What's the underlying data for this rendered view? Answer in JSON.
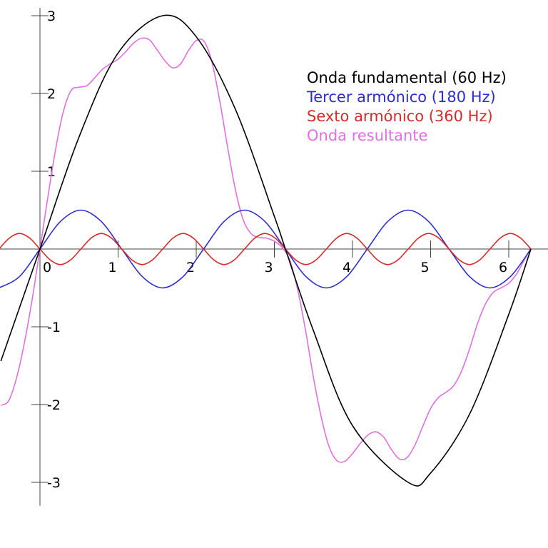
{
  "chart_data": {
    "type": "line",
    "title": "",
    "xlabel": "",
    "ylabel": "",
    "xlim": [
      -0.53,
      6.35
    ],
    "ylim": [
      -3.3,
      3.1
    ],
    "x_ticks": [
      0,
      1,
      2,
      3,
      4,
      5,
      6
    ],
    "x_tick_labels": [
      "0",
      "1",
      "2",
      "3",
      "4",
      "5",
      "6"
    ],
    "y_ticks": [
      -3,
      -2,
      -1,
      1,
      2,
      3
    ],
    "y_tick_labels": [
      "-3",
      "-2",
      "-1",
      "1",
      "2",
      "3"
    ],
    "grid": false,
    "legend_position": "top-right",
    "series": [
      {
        "name": "Onda fundamental (60 Hz)",
        "color": "#000000",
        "x": [
          -0.5,
          0,
          0.5,
          1,
          1.5708,
          2,
          2.5,
          3,
          3.1416,
          3.5,
          4,
          4.7124,
          5,
          5.5,
          6,
          6.2832
        ],
        "y": [
          -1.44,
          0,
          1.44,
          2.52,
          3,
          2.73,
          1.8,
          0.42,
          0,
          -1.05,
          -2.27,
          -3,
          -2.88,
          -2.12,
          -0.84,
          0
        ]
      },
      {
        "name": "Tercer armónico (180 Hz)",
        "color": "#2d2dcc",
        "x": [
          -0.5236,
          -0.2618,
          0,
          0.2618,
          0.5236,
          0.7854,
          1.0472,
          1.309,
          1.5708,
          1.8326,
          2.0944,
          2.3562,
          2.618,
          2.8798,
          3.1416,
          3.4034,
          3.6652,
          3.927,
          4.1888,
          4.4506,
          4.7124,
          4.9742,
          5.236,
          5.4978,
          5.7596,
          6.0214,
          6.2832
        ],
        "y": [
          -0.5,
          -0.354,
          0,
          0.354,
          0.5,
          0.354,
          0,
          -0.354,
          -0.5,
          -0.354,
          0,
          0.354,
          0.5,
          0.354,
          0,
          -0.354,
          -0.5,
          -0.354,
          0,
          0.354,
          0.5,
          0.354,
          0,
          -0.354,
          -0.5,
          -0.354,
          0
        ]
      },
      {
        "name": "Sexto armónico (360 Hz)",
        "color": "#d42a2a",
        "x": [
          -0.5236,
          -0.3927,
          -0.2618,
          -0.1309,
          0,
          0.1309,
          0.2618,
          0.3927,
          0.5236,
          0.6545,
          0.7854,
          0.9163,
          1.0472,
          1.1781,
          1.309,
          1.4399,
          1.5708,
          1.7017,
          1.8326,
          1.9635,
          2.0944,
          2.2253,
          2.3562,
          2.4871,
          2.618,
          2.7489,
          2.8798,
          3.0107,
          3.1416,
          3.2725,
          3.4034,
          3.5343,
          3.6652,
          3.7961,
          3.927,
          4.0579,
          4.1888,
          4.3197,
          4.4506,
          4.5815,
          4.7124,
          4.8433,
          4.9742,
          5.1051,
          5.236,
          5.3669,
          5.4978,
          5.6287,
          5.7596,
          5.8905,
          6.0214,
          6.1523,
          6.2832
        ],
        "y": [
          0,
          0.14,
          0.2,
          0.14,
          0,
          -0.14,
          -0.2,
          -0.14,
          0,
          0.14,
          0.2,
          0.14,
          0,
          -0.14,
          -0.2,
          -0.14,
          0,
          0.14,
          0.2,
          0.14,
          0,
          -0.14,
          -0.2,
          -0.14,
          0,
          0.14,
          0.2,
          0.14,
          0,
          -0.14,
          -0.2,
          -0.14,
          0,
          0.14,
          0.2,
          0.14,
          0,
          -0.14,
          -0.2,
          -0.14,
          0,
          0.14,
          0.2,
          0.14,
          0,
          -0.14,
          -0.2,
          -0.14,
          0,
          0.14,
          0.2,
          0.14,
          0
        ]
      },
      {
        "name": "Onda resultante",
        "color": "#e070e0",
        "x": [
          -0.5,
          -0.4,
          -0.3,
          -0.2,
          -0.1,
          0,
          0.1,
          0.2,
          0.3,
          0.4,
          0.5,
          0.6,
          0.7,
          0.8,
          0.9,
          1.0,
          1.1,
          1.2,
          1.3,
          1.4,
          1.5,
          1.6,
          1.7,
          1.8,
          1.9,
          2.0,
          2.1,
          2.2,
          2.3,
          2.4,
          2.5,
          2.6,
          2.7,
          2.8,
          2.9,
          3.0,
          3.1,
          3.2,
          3.3,
          3.4,
          3.5,
          3.6,
          3.7,
          3.8,
          3.9,
          4.0,
          4.1,
          4.2,
          4.3,
          4.4,
          4.5,
          4.6,
          4.7,
          4.8,
          4.9,
          5.0,
          5.1,
          5.2,
          5.3,
          5.4,
          5.5,
          5.6,
          5.7,
          5.8,
          5.9,
          6.0,
          6.1,
          6.2,
          6.28
        ],
        "y": [
          -2.01,
          -1.95,
          -1.66,
          -1.21,
          -0.65,
          0,
          0.66,
          1.28,
          1.77,
          2.04,
          2.08,
          2.1,
          2.2,
          2.31,
          2.38,
          2.44,
          2.54,
          2.65,
          2.71,
          2.69,
          2.56,
          2.42,
          2.33,
          2.38,
          2.55,
          2.68,
          2.67,
          2.41,
          1.91,
          1.32,
          0.77,
          0.38,
          0.2,
          0.15,
          0.14,
          0.1,
          0.02,
          -0.15,
          -0.53,
          -1.05,
          -1.65,
          -2.16,
          -2.54,
          -2.72,
          -2.73,
          -2.63,
          -2.5,
          -2.39,
          -2.35,
          -2.42,
          -2.58,
          -2.7,
          -2.68,
          -2.52,
          -2.28,
          -2.05,
          -1.91,
          -1.84,
          -1.75,
          -1.56,
          -1.28,
          -0.96,
          -0.71,
          -0.56,
          -0.5,
          -0.44,
          -0.32,
          -0.14,
          0
        ]
      }
    ]
  }
}
